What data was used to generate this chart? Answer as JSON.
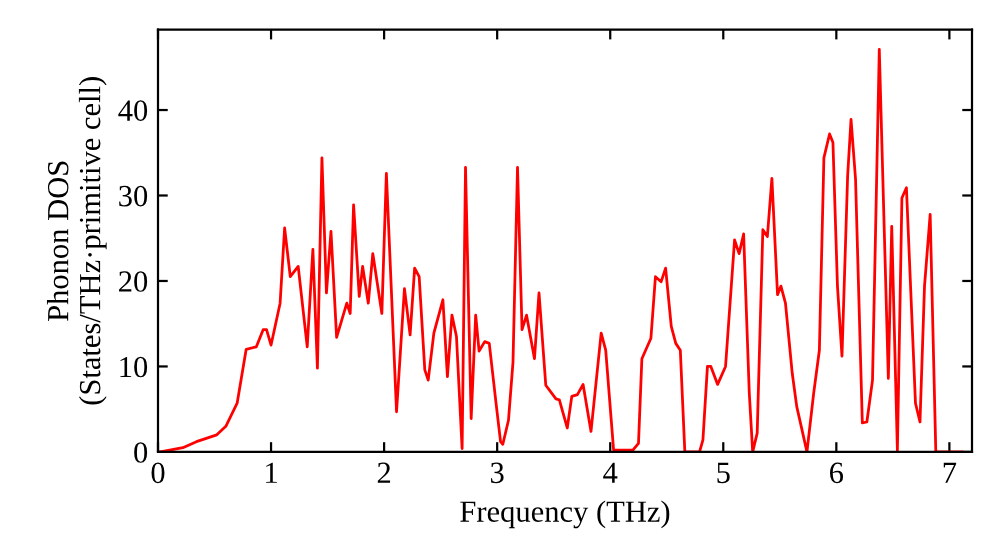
{
  "chart_data": {
    "type": "line",
    "xlabel": "Frequency (THz)",
    "ylabel": "Phonon DOS\n(States/THz·primitive cell)",
    "xlim": [
      0,
      7.2
    ],
    "ylim": [
      0,
      49.4
    ],
    "xticks": [
      0,
      1,
      2,
      3,
      4,
      5,
      6,
      7
    ],
    "yticks": [
      0,
      10,
      20,
      30,
      40
    ],
    "grid": false,
    "marker": "none",
    "line_style": "solid",
    "series": [
      {
        "color": "#ff0000",
        "x": [
          0.02,
          0.22,
          0.34,
          0.52,
          0.6,
          0.7,
          0.78,
          0.87,
          0.93,
          0.96,
          1.0,
          1.08,
          1.12,
          1.17,
          1.24,
          1.32,
          1.37,
          1.41,
          1.45,
          1.49,
          1.53,
          1.58,
          1.67,
          1.7,
          1.73,
          1.78,
          1.81,
          1.86,
          1.9,
          1.98,
          2.02,
          2.11,
          2.18,
          2.23,
          2.27,
          2.31,
          2.36,
          2.39,
          2.44,
          2.52,
          2.56,
          2.6,
          2.64,
          2.69,
          2.72,
          2.77,
          2.81,
          2.84,
          2.89,
          2.93,
          2.99,
          3.03,
          3.05,
          3.1,
          3.14,
          3.18,
          3.22,
          3.26,
          3.33,
          3.37,
          3.43,
          3.52,
          3.55,
          3.62,
          3.66,
          3.71,
          3.76,
          3.83,
          3.92,
          3.96,
          4.03,
          4.2,
          4.25,
          4.28,
          4.36,
          4.4,
          4.45,
          4.49,
          4.54,
          4.58,
          4.62,
          4.66,
          4.79,
          4.82,
          4.86,
          4.89,
          4.95,
          5.02,
          5.1,
          5.14,
          5.18,
          5.23,
          5.26,
          5.3,
          5.35,
          5.39,
          5.43,
          5.48,
          5.51,
          5.55,
          5.61,
          5.65,
          5.74,
          5.8,
          5.85,
          5.89,
          5.94,
          5.97,
          6.01,
          6.05,
          6.1,
          6.13,
          6.17,
          6.23,
          6.27,
          6.32,
          6.38,
          6.46,
          6.49,
          6.54,
          6.58,
          6.62,
          6.7,
          6.74,
          6.78,
          6.83,
          6.88,
          7.11
        ],
        "values": [
          0,
          0.5,
          1.2,
          2.0,
          3.0,
          5.7,
          12,
          12.3,
          14.3,
          14.3,
          12.5,
          17.4,
          26.2,
          20.5,
          21.7,
          12.3,
          23.7,
          9.8,
          34.4,
          18.6,
          25.8,
          13.4,
          17.4,
          16.2,
          28.9,
          18.2,
          21.7,
          17.4,
          23.2,
          16.2,
          32.6,
          4.7,
          19.1,
          13.7,
          21.5,
          20.5,
          9.6,
          8.4,
          13.9,
          17.8,
          8.8,
          16.0,
          13.5,
          0.4,
          33.3,
          3.9,
          16.0,
          11.8,
          12.9,
          12.7,
          5.7,
          1.2,
          0.9,
          3.7,
          10.5,
          33.3,
          14.3,
          16.0,
          10.9,
          18.6,
          7.8,
          6.2,
          6.1,
          2.8,
          6.5,
          6.7,
          7.9,
          2.4,
          13.9,
          11.9,
          0.2,
          0.2,
          1.0,
          10.9,
          13.3,
          20.5,
          19.9,
          21.5,
          14.7,
          12.7,
          11.9,
          0,
          0,
          1.4,
          10.0,
          10.0,
          7.9,
          10.0,
          24.8,
          23.2,
          25.5,
          6.9,
          0,
          2.2,
          26.0,
          25.2,
          32.0,
          18.4,
          19.4,
          17.4,
          9.2,
          5.3,
          0,
          6.9,
          11.9,
          34.4,
          37.2,
          36.2,
          19.4,
          11.2,
          32.3,
          38.9,
          31.9,
          3.4,
          3.5,
          8.4,
          47.1,
          8.6,
          26.4,
          0.2,
          29.7,
          30.9,
          5.7,
          3.5,
          19.4,
          27.8,
          0,
          0
        ]
      }
    ]
  }
}
